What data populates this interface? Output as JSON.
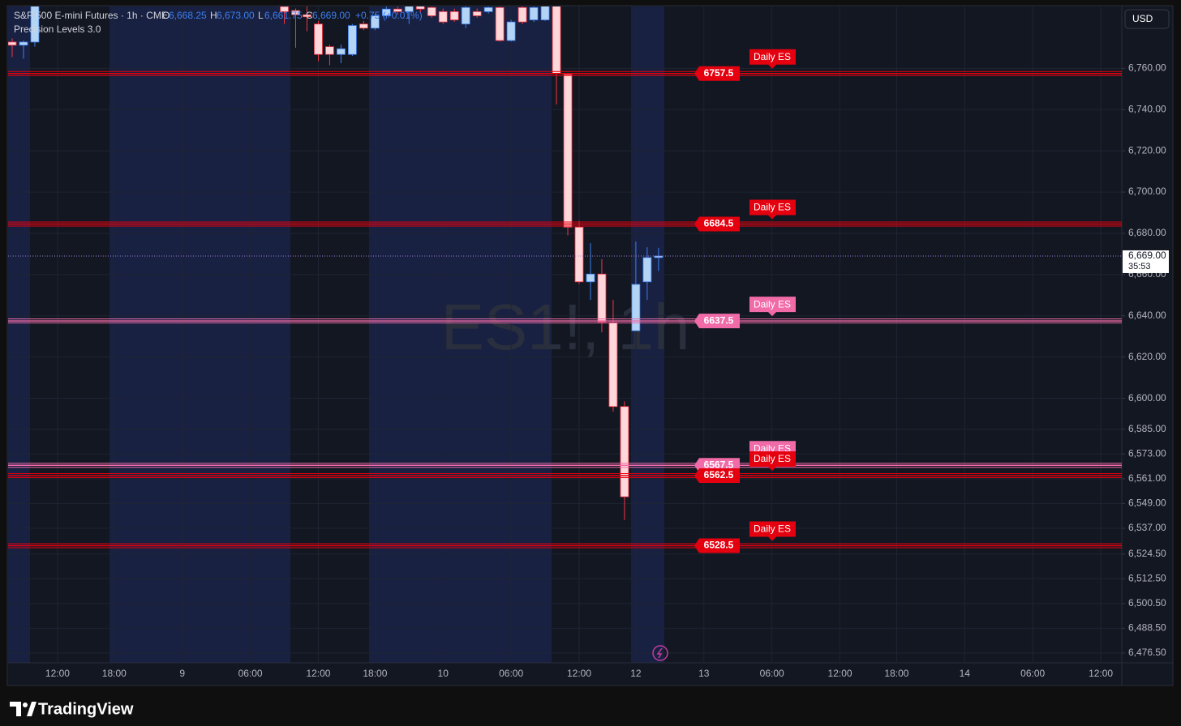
{
  "chart_data": {
    "type": "candlestick",
    "title": "S&P 500 E-mini Futures · 1h · CME",
    "indicator": "Precision Levels 3.0",
    "watermark": "ES1!, 1h",
    "currency": "USD",
    "brand": "TradingView",
    "ohlc_legend": [
      {
        "key": "O",
        "label": "6,668.25"
      },
      {
        "key": "H",
        "label": "6,673.00"
      },
      {
        "key": "L",
        "label": "6,661.75"
      },
      {
        "key": "C",
        "label": "6,669.00"
      }
    ],
    "change_label": "+0.75 (+0.01%)",
    "categories": [
      null,
      null,
      null,
      null,
      "12:00",
      null,
      null,
      null,
      null,
      "18:00",
      null,
      null,
      null,
      null,
      null,
      "9",
      null,
      null,
      null,
      null,
      null,
      "06:00",
      null,
      null,
      null,
      null,
      null,
      "12:00",
      null,
      null,
      null,
      null,
      "18:00",
      null,
      null,
      null,
      null,
      null,
      "10",
      null,
      null,
      null,
      null,
      null,
      "06:00",
      null,
      null,
      null,
      null,
      null,
      "12:00",
      null,
      null,
      null,
      null,
      "12",
      null,
      null,
      null,
      null,
      null,
      "13",
      null,
      null,
      null,
      null,
      null,
      "06:00",
      null,
      null,
      null,
      null,
      null,
      "12:00",
      null,
      null,
      null,
      null,
      "18:00",
      null,
      null,
      null,
      null,
      null,
      "14",
      null,
      null,
      null,
      null,
      null,
      "06:00",
      null,
      null,
      null,
      null,
      null,
      "12:00"
    ],
    "open": [
      6772.75,
      6771.25,
      6772.75,
      null,
      null,
      null,
      null,
      null,
      null,
      null,
      null,
      null,
      null,
      null,
      null,
      null,
      null,
      null,
      null,
      null,
      null,
      null,
      null,
      null,
      6790,
      6788,
      6786,
      6781.5,
      6770.5,
      6766.75,
      6766.75,
      6781.5,
      6779.5,
      6785.5,
      6788.75,
      6787.5,
      6790.25,
      6789.5,
      6787.5,
      6787.5,
      6781.5,
      6787.5,
      6787.5,
      6789.5,
      6773.5,
      6789.5,
      6783.5,
      6783.5,
      6792,
      6757,
      6683,
      6656.5,
      6660.25,
      6636.75,
      6596,
      6632.75,
      6656.5,
      6668.25,
      null,
      null,
      null,
      null,
      null,
      null,
      null,
      null,
      null,
      null,
      null,
      null,
      null,
      null,
      null,
      null,
      null,
      null,
      null,
      null,
      null,
      null,
      null,
      null,
      null,
      null,
      null,
      null,
      null,
      null,
      null,
      null,
      null,
      null,
      null,
      null,
      null,
      null,
      null
    ],
    "high": [
      6774.5,
      6773.5,
      6794,
      null,
      null,
      null,
      null,
      null,
      null,
      null,
      null,
      null,
      null,
      null,
      null,
      null,
      null,
      null,
      null,
      null,
      null,
      null,
      null,
      null,
      6792,
      6789,
      6790,
      6783,
      6771.5,
      6771.5,
      6781.5,
      6783,
      6786.5,
      6790,
      6790,
      6792,
      6792,
      6791,
      6789,
      6789,
      6791,
      6789,
      6791,
      6791,
      6783.5,
      6791,
      6791,
      6794,
      6794,
      6757.5,
      6686,
      6675.25,
      6667.5,
      6647.75,
      6598.5,
      6676,
      6673.25,
      6673,
      null,
      null,
      null,
      null,
      null,
      null,
      null,
      null,
      null,
      null,
      null,
      null,
      null,
      null,
      null,
      null,
      null,
      null,
      null,
      null,
      null,
      null,
      null,
      null,
      null,
      null,
      null,
      null,
      null,
      null,
      null,
      null,
      null,
      null,
      null,
      null,
      null,
      null,
      null
    ],
    "low": [
      6765.5,
      6764.75,
      6770.5,
      null,
      null,
      null,
      null,
      null,
      null,
      null,
      null,
      null,
      null,
      null,
      null,
      null,
      null,
      null,
      null,
      null,
      null,
      null,
      null,
      null,
      6781.5,
      6770,
      6778,
      6763.5,
      6761.5,
      6762.5,
      6766,
      6778.5,
      6778.5,
      6784,
      6786,
      6781.5,
      6787,
      6784.5,
      6781.5,
      6782.5,
      6779.5,
      6784.5,
      6786.5,
      6773,
      6773,
      6781.5,
      6782.5,
      6783,
      6742.5,
      6679,
      6655.5,
      6647.75,
      6632,
      6593.5,
      6541,
      6632.75,
      6647.75,
      6661.75,
      null,
      null,
      null,
      null,
      null,
      null,
      null,
      null,
      null,
      null,
      null,
      null,
      null,
      null,
      null,
      null,
      null,
      null,
      null,
      null,
      null,
      null,
      null,
      null,
      null,
      null,
      null,
      null,
      null,
      null,
      null,
      null,
      null,
      null,
      null,
      null,
      null,
      null,
      null
    ],
    "close": [
      6771.25,
      6772.75,
      6792,
      null,
      null,
      null,
      null,
      null,
      null,
      null,
      null,
      null,
      null,
      null,
      null,
      null,
      null,
      null,
      null,
      null,
      null,
      null,
      null,
      null,
      6787.5,
      6786,
      6785,
      6766.75,
      6766.75,
      6769.5,
      6780.75,
      6779.5,
      6785.5,
      6788.75,
      6787.5,
      6790.25,
      6788.75,
      6785.5,
      6782.5,
      6783.5,
      6789.5,
      6785.5,
      6789.5,
      6773.5,
      6782.5,
      6782.5,
      6789.5,
      6792,
      6757.5,
      6683,
      6656.5,
      6660.25,
      6637,
      6596,
      6552.25,
      6655.25,
      6668.25,
      6669,
      null,
      null,
      null,
      null,
      null,
      null,
      null,
      null,
      null,
      null,
      null,
      null,
      null,
      null,
      null,
      null,
      null,
      null,
      null,
      null,
      null,
      null,
      null,
      null,
      null,
      null,
      null,
      null,
      null,
      null,
      null,
      null,
      null,
      null,
      null,
      null,
      null,
      null,
      null
    ],
    "up_color": "#b3d4f5",
    "up_edge": "#3d7ff0",
    "down_color": "#ffd6da",
    "down_edge": "#f23645",
    "ylim": [
      6471.75,
      6790
    ],
    "yticks": [
      {
        "value": 6760,
        "label": "6,760.00"
      },
      {
        "value": 6740,
        "label": "6,740.00"
      },
      {
        "value": 6720,
        "label": "6,720.00"
      },
      {
        "value": 6700,
        "label": "6,700.00"
      },
      {
        "value": 6680,
        "label": "6,680.00"
      },
      {
        "value": 6660,
        "label": "6,660.00"
      },
      {
        "value": 6640,
        "label": "6,640.00"
      },
      {
        "value": 6620,
        "label": "6,620.00"
      },
      {
        "value": 6600,
        "label": "6,600.00"
      },
      {
        "value": 6585,
        "label": "6,585.00"
      },
      {
        "value": 6573,
        "label": "6,573.00"
      },
      {
        "value": 6561,
        "label": "6,561.00"
      },
      {
        "value": 6549,
        "label": "6,549.00"
      },
      {
        "value": 6537,
        "label": "6,537.00"
      },
      {
        "value": 6524.5,
        "label": "6,524.50"
      },
      {
        "value": 6512.5,
        "label": "6,512.50"
      },
      {
        "value": 6500.5,
        "label": "6,500.50"
      },
      {
        "value": 6488.5,
        "label": "6,488.50"
      },
      {
        "value": 6476.5,
        "label": "6,476.50"
      }
    ],
    "grid": true,
    "levels": [
      {
        "value": 6757.5,
        "tag": "Daily ES",
        "color": "#e5000f"
      },
      {
        "value": 6684.5,
        "tag": "Daily ES",
        "color": "#e5000f"
      },
      {
        "value": 6637.5,
        "tag": "Daily ES",
        "color": "#f06ba8"
      },
      {
        "value": 6567.5,
        "tag": "Daily ES",
        "color": "#f06ba8"
      },
      {
        "value": 6562.5,
        "tag": "Daily ES",
        "color": "#e5000f"
      },
      {
        "value": 6528.5,
        "tag": "Daily ES",
        "color": "#e5000f"
      }
    ],
    "last_price": {
      "value": 6669,
      "label": "6,669.00",
      "countdown": "35:53",
      "color": "#9b7fd6"
    }
  }
}
